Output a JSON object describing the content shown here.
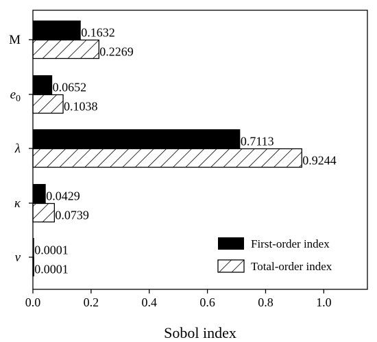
{
  "chart_data": {
    "type": "bar",
    "orientation": "horizontal",
    "categories": [
      "M",
      "e0",
      "λ",
      "κ",
      "ν"
    ],
    "series": [
      {
        "name": "First-order index",
        "values": [
          0.1632,
          0.0652,
          0.7113,
          0.0429,
          0.0001
        ],
        "style": "solid",
        "color": "#000000"
      },
      {
        "name": "Total-order index",
        "values": [
          0.2269,
          0.1038,
          0.9244,
          0.0739,
          0.0001
        ],
        "style": "hatched",
        "color": "#000000"
      }
    ],
    "value_labels": {
      "first": [
        "0.1632",
        "0.0652",
        "0.7113",
        "0.0429",
        "0.0001"
      ],
      "total": [
        "0.2269",
        "0.1038",
        "0.9244",
        "0.0739",
        "0.0001"
      ]
    },
    "xlabel": "Sobol index",
    "xlim": [
      0,
      1.15
    ],
    "xticks": [
      0.0,
      0.2,
      0.4,
      0.6,
      0.8,
      1.0
    ],
    "xtick_labels": [
      "0.0",
      "0.2",
      "0.4",
      "0.6",
      "0.8",
      "1.0"
    ],
    "grid": false,
    "legend_position": "bottom-right"
  }
}
